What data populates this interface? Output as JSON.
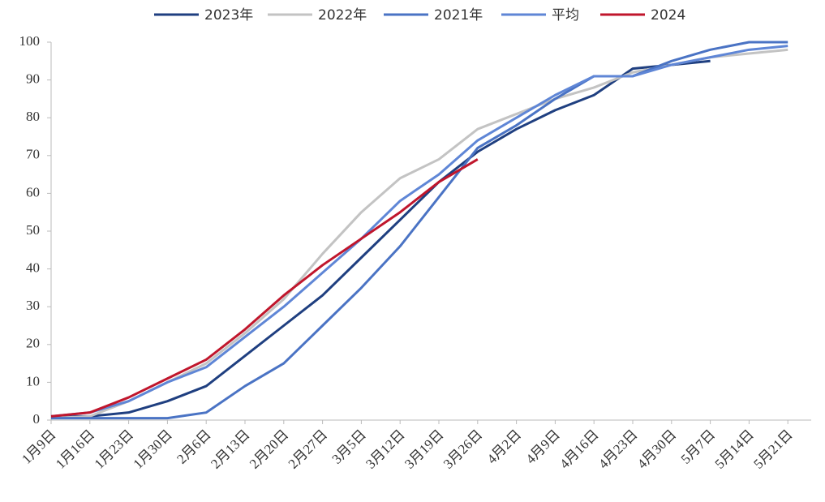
{
  "chart_data": {
    "type": "line",
    "categories": [
      "1月9日",
      "1月16日",
      "1月23日",
      "1月30日",
      "2月6日",
      "2月13日",
      "2月20日",
      "2月27日",
      "3月5日",
      "3月12日",
      "3月19日",
      "3月26日",
      "4月2日",
      "4月9日",
      "4月16日",
      "4月23日",
      "4月30日",
      "5月7日",
      "5月14日",
      "5月21日"
    ],
    "series": [
      {
        "name": "2023年",
        "color": "#1f3f80",
        "values": [
          1,
          1,
          2,
          5,
          9,
          17,
          25,
          33,
          43,
          53,
          63,
          71,
          77,
          82,
          86,
          93,
          94,
          95,
          null,
          null
        ]
      },
      {
        "name": "2022年",
        "color": "#c3c3c3",
        "values": [
          0.5,
          1,
          5,
          10,
          15,
          23,
          32,
          44,
          55,
          64,
          69,
          77,
          81,
          85,
          88,
          92,
          94,
          96,
          97,
          98
        ]
      },
      {
        "name": "2021年",
        "color": "#4a73c4",
        "values": [
          0.5,
          0.5,
          0.5,
          0.5,
          2,
          9,
          15,
          25,
          35,
          46,
          59,
          72,
          78,
          85,
          91,
          91,
          95,
          98,
          100,
          100
        ]
      },
      {
        "name": "平均",
        "color": "#5f86d6",
        "values": [
          1,
          2,
          5,
          10,
          14,
          22,
          30,
          39,
          48,
          58,
          65,
          74,
          80,
          86,
          91,
          91,
          94,
          96,
          98,
          99
        ]
      },
      {
        "name": "2024",
        "color": "#c0162c",
        "values": [
          1,
          2,
          6,
          11,
          16,
          24,
          33,
          41,
          48,
          55,
          63,
          69,
          null,
          null,
          null,
          null,
          null,
          null,
          null,
          null
        ]
      }
    ],
    "ylim": [
      0,
      100
    ],
    "yticks": [
      0,
      10,
      20,
      30,
      40,
      50,
      60,
      70,
      80,
      90,
      100
    ],
    "legend": "top"
  }
}
